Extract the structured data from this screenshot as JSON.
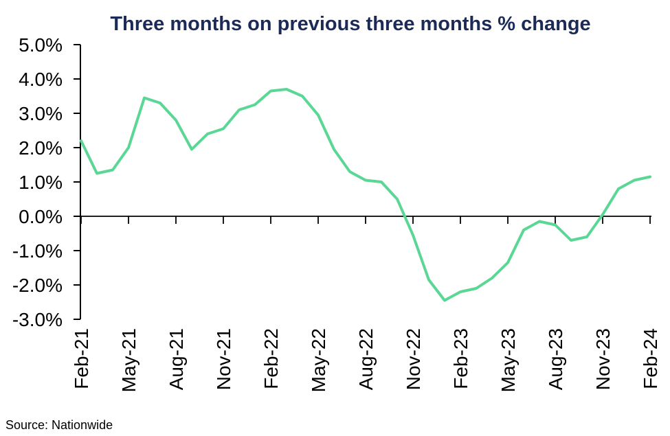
{
  "chart_data": {
    "type": "line",
    "title": "Three months on previous three months % change",
    "source_note": "Source: Nationwide",
    "x": [
      "Feb-21",
      "Mar-21",
      "Apr-21",
      "May-21",
      "Jun-21",
      "Jul-21",
      "Aug-21",
      "Sep-21",
      "Oct-21",
      "Nov-21",
      "Dec-21",
      "Jan-22",
      "Feb-22",
      "Mar-22",
      "Apr-22",
      "May-22",
      "Jun-22",
      "Jul-22",
      "Aug-22",
      "Sep-22",
      "Oct-22",
      "Nov-22",
      "Dec-22",
      "Jan-23",
      "Feb-23",
      "Mar-23",
      "Apr-23",
      "May-23",
      "Jun-23",
      "Jul-23",
      "Aug-23",
      "Sep-23",
      "Oct-23",
      "Nov-23",
      "Dec-23",
      "Jan-24",
      "Feb-24"
    ],
    "values": [
      2.2,
      1.25,
      1.35,
      2.0,
      3.45,
      3.3,
      2.8,
      1.95,
      2.4,
      2.55,
      3.1,
      3.25,
      3.65,
      3.7,
      3.5,
      2.95,
      1.95,
      1.3,
      1.05,
      1.0,
      0.5,
      -0.55,
      -1.85,
      -2.45,
      -2.2,
      -2.1,
      -1.8,
      -1.35,
      -0.4,
      -0.15,
      -0.25,
      -0.7,
      -0.6,
      0.05,
      0.8,
      1.05,
      1.15
    ],
    "x_tick_labels": [
      "Feb-21",
      "May-21",
      "Aug-21",
      "Nov-21",
      "Feb-22",
      "May-22",
      "Aug-22",
      "Nov-22",
      "Feb-23",
      "May-23",
      "Aug-23",
      "Nov-23",
      "Feb-24"
    ],
    "x_tick_every": 3,
    "y_ticks": [
      {
        "value": 5.0,
        "label": "5.0%"
      },
      {
        "value": 4.0,
        "label": "4.0%"
      },
      {
        "value": 3.0,
        "label": "3.0%"
      },
      {
        "value": 2.0,
        "label": "2.0%"
      },
      {
        "value": 1.0,
        "label": "1.0%"
      },
      {
        "value": 0.0,
        "label": "0.0%"
      },
      {
        "value": -1.0,
        "label": "-1.0%"
      },
      {
        "value": -2.0,
        "label": "-2.0%"
      },
      {
        "value": -3.0,
        "label": "-3.0%"
      }
    ],
    "ylim": [
      -3.0,
      5.0
    ],
    "unit": "%",
    "grid": false,
    "legend": "none",
    "colors": {
      "line": "#5bd795",
      "title": "#1c2a58",
      "axis": "#000000",
      "background": "#ffffff"
    }
  }
}
